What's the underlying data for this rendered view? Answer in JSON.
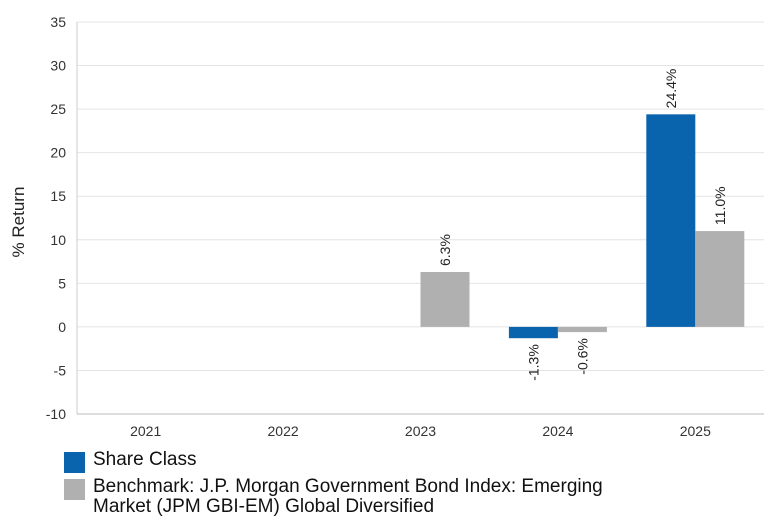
{
  "chart_data": {
    "type": "bar",
    "categories": [
      "2021",
      "2022",
      "2023",
      "2024",
      "2025"
    ],
    "series": [
      {
        "name": "Share Class",
        "color": "#0a64ad",
        "values": [
          null,
          null,
          null,
          -1.3,
          24.4
        ]
      },
      {
        "name": "Benchmark: J.P. Morgan Government Bond Index: Emerging Market (JPM GBI-EM) Global Diversified",
        "color": "#b0b0b0",
        "values": [
          null,
          null,
          6.3,
          -0.6,
          11.0
        ]
      }
    ],
    "data_labels": [
      [
        null,
        null,
        null,
        "-1.3%",
        "24.4%"
      ],
      [
        null,
        null,
        "6.3%",
        "-0.6%",
        "11.0%"
      ]
    ],
    "ylabel": "% Return",
    "xlabel": "",
    "ylim": [
      -10,
      35
    ],
    "yticks": [
      -10,
      -5,
      0,
      5,
      10,
      15,
      20,
      25,
      30,
      35
    ],
    "grid": true,
    "legend_position": "bottom-left"
  }
}
